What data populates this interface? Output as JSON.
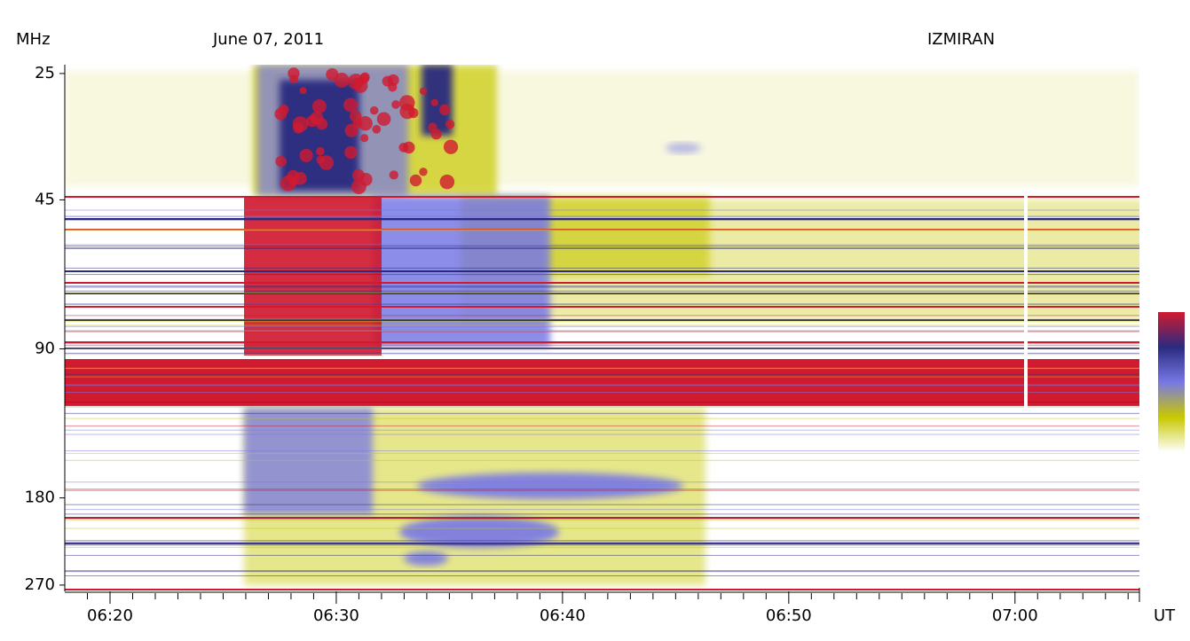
{
  "chart_data": {
    "type": "spectrogram",
    "title": "June 07, 2011",
    "observatory": "IZMIRAN",
    "y_label": "MHz",
    "x_label": "UT",
    "log_scale": true,
    "ylim": [
      24,
      278
    ],
    "yticks": [
      25,
      45,
      90,
      180,
      270
    ],
    "xlim": [
      378,
      425.5
    ],
    "xticks": [
      {
        "value": 380,
        "label": "06:20"
      },
      {
        "value": 390,
        "label": "06:30"
      },
      {
        "value": 400,
        "label": "06:40"
      },
      {
        "value": 410,
        "label": "06:50"
      },
      {
        "value": 420,
        "label": "07:00"
      }
    ],
    "xminorticks": [
      379,
      381,
      382,
      383,
      384,
      385,
      386,
      387,
      388,
      389,
      391,
      392,
      393,
      394,
      395,
      396,
      397,
      398,
      399,
      401,
      402,
      403,
      404,
      405,
      406,
      407,
      408,
      409,
      411,
      412,
      413,
      414,
      415,
      416,
      417,
      418,
      419,
      421,
      422,
      423,
      424,
      425
    ],
    "colormap": [
      "#ffffff",
      "#c8c800",
      "#7878e6",
      "#2a2a80",
      "#d01a30"
    ]
  }
}
